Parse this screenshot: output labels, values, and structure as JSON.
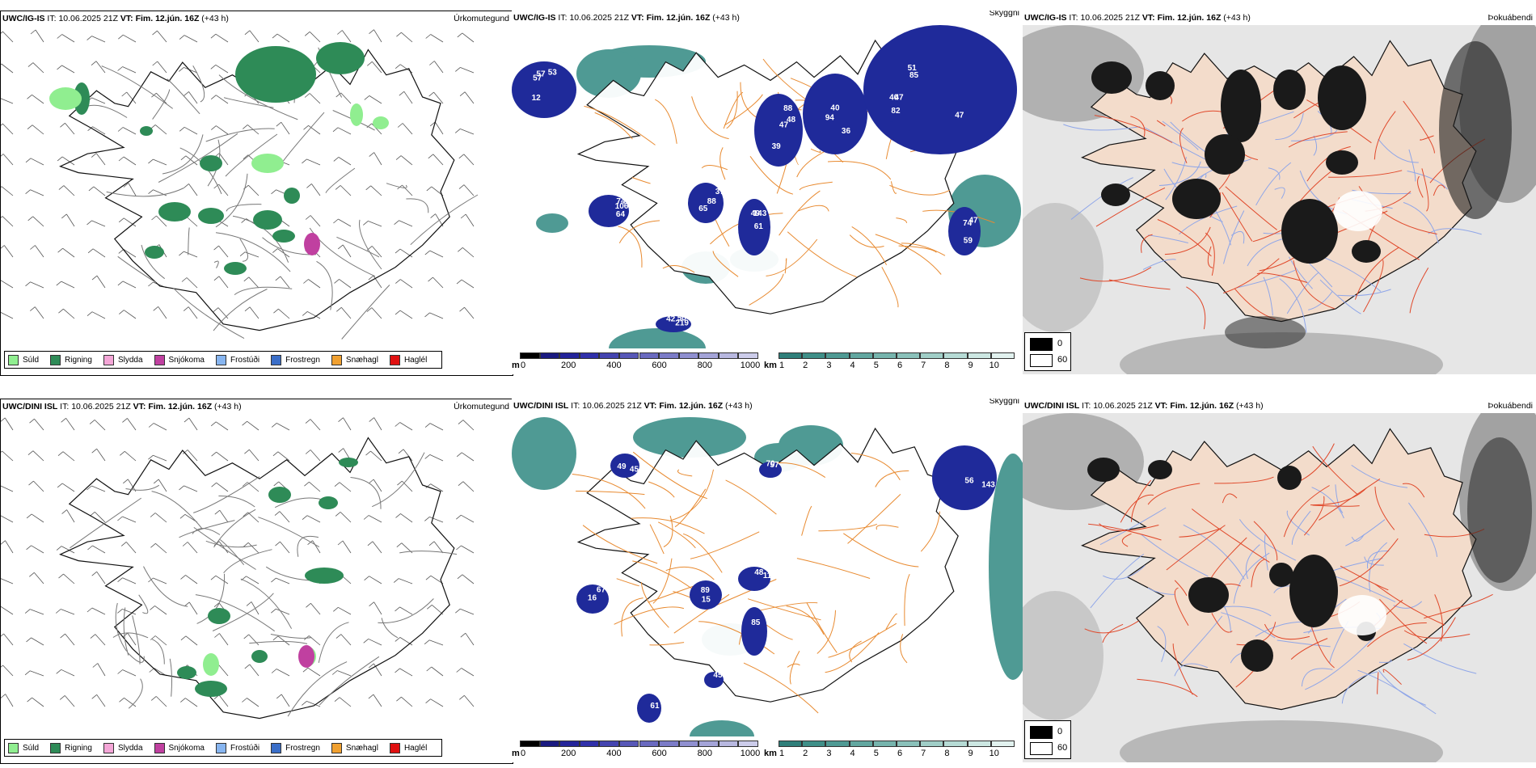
{
  "rows": [
    {
      "model": "UWC/IG-IS",
      "it_label": "IT:",
      "it_value": "10.06.2025 21Z",
      "vt_label": "VT:",
      "vt_value": "Fim. 12.jún. 16Z",
      "lead": "(+43 h)",
      "panels": {
        "precip": {
          "type_label": "Úrkomutegund"
        },
        "cloud": {
          "type_label": "Skyggni",
          "numbers": [
            "57",
            "48",
            "36",
            "51",
            "47",
            "65",
            "64",
            "61",
            "50",
            "47",
            "12",
            "88",
            "94",
            "85",
            "82",
            "88",
            "106",
            "49",
            "42",
            "74",
            "53",
            "39",
            "40",
            "47",
            "40",
            "37",
            "74",
            "143",
            "219",
            "59",
            "57",
            "47"
          ]
        },
        "fog": {
          "type_label": "Þokuábendi"
        }
      }
    },
    {
      "model": "UWC/DINI ISL",
      "it_label": "IT:",
      "it_value": "10.06.2025 21Z",
      "vt_label": "VT:",
      "vt_value": "Fim. 12.jún. 16Z",
      "lead": "(+43 h)",
      "panels": {
        "precip": {
          "type_label": "Úrkomutegund"
        },
        "cloud": {
          "type_label": "Skyggni",
          "numbers": [
            "45",
            "70",
            "143",
            "112",
            "15",
            "67",
            "85",
            "61",
            "45",
            "49",
            "57",
            "56",
            "48",
            "89",
            "16"
          ]
        },
        "fog": {
          "type_label": "Þokuábendi"
        }
      }
    }
  ],
  "precip_legend": [
    {
      "label": "Súld",
      "color": "#90ee90"
    },
    {
      "label": "Rigning",
      "color": "#2e8b57"
    },
    {
      "label": "Slydda",
      "color": "#f4a6d7"
    },
    {
      "label": "Snjókoma",
      "color": "#c040a0"
    },
    {
      "label": "Frostúði",
      "color": "#87b5f0"
    },
    {
      "label": "Frostregn",
      "color": "#3a6ec8"
    },
    {
      "label": "Snæhagl",
      "color": "#f0a030"
    },
    {
      "label": "Haglél",
      "color": "#e01010"
    }
  ],
  "cloud_base_bar": {
    "unit": "m",
    "ticks": [
      "0",
      "200",
      "400",
      "600",
      "800",
      "1000"
    ],
    "colors": [
      "#000000",
      "#1a1a80",
      "#24249a",
      "#3030aa",
      "#4444b0",
      "#5858b8",
      "#6a6ac0",
      "#7c7cc8",
      "#9090d0",
      "#a4a4d8",
      "#b8b8e0",
      "#ccccea"
    ]
  },
  "visibility_bar": {
    "unit": "km",
    "ticks": [
      "1",
      "2",
      "3",
      "4",
      "5",
      "6",
      "7",
      "8",
      "9",
      "10"
    ],
    "colors": [
      "#2f7f7a",
      "#3f8f88",
      "#4f9a94",
      "#62a7a0",
      "#76b4ad",
      "#8ac1ba",
      "#a0cec7",
      "#b6dbd5",
      "#cce7e2",
      "#e2f2ef"
    ]
  },
  "fog_legend": {
    "max_label": "0",
    "min_label": "60"
  }
}
